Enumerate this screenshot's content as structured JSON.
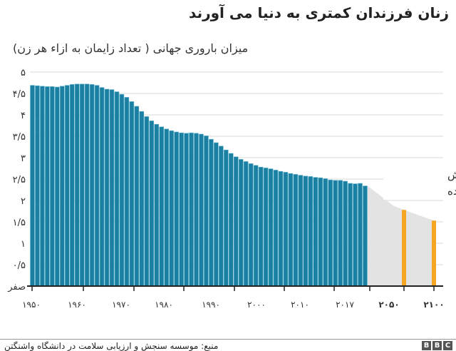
{
  "title": "زنان فرزندان کمتری به دنیا می آورند",
  "subtitle": "میزان باروری جهانی ( تعداد زایمان به ازاء هر زن)",
  "source": "منبع: موسسه سنجش و ارزیابی سلامت در دانشگاه واشنگتن",
  "logo": [
    "B",
    "B",
    "C"
  ],
  "colors": {
    "historical": "#1a7fa0",
    "projected": "#f5a623",
    "projection_area": "#e3e3e3",
    "grid": "#d8d8d8"
  },
  "chart_data": {
    "type": "bar",
    "title": "زنان فرزندان کمتری به دنیا می آورند",
    "ylabel": "میزان باروری جهانی ( تعداد زایمان به ازاء هر زن)",
    "ylim": [
      0,
      5
    ],
    "grid": true,
    "y_ticks": [
      "صفر",
      "۰/۵",
      "۱",
      "۱/۵",
      "۲",
      "۲/۵",
      "۳",
      "۳/۵",
      "۴",
      "۴/۵",
      "۵"
    ],
    "x_ticks": [
      "۱۹۵۰",
      "۱۹۶۰",
      "۱۹۷۰",
      "۱۹۸۰",
      "۱۹۹۰",
      "۲۰۰۰",
      "۲۰۱۰",
      "۲۰۱۷",
      "۲۰۵۰",
      "۲۱۰۰"
    ],
    "historical": {
      "start_year": 1950,
      "end_year": 2017,
      "values": [
        4.69,
        4.68,
        4.67,
        4.66,
        4.66,
        4.65,
        4.67,
        4.69,
        4.71,
        4.72,
        4.72,
        4.72,
        4.71,
        4.69,
        4.64,
        4.6,
        4.59,
        4.54,
        4.48,
        4.41,
        4.31,
        4.2,
        4.08,
        3.96,
        3.86,
        3.78,
        3.72,
        3.67,
        3.63,
        3.6,
        3.58,
        3.57,
        3.58,
        3.57,
        3.55,
        3.51,
        3.43,
        3.35,
        3.27,
        3.18,
        3.1,
        3.02,
        2.96,
        2.91,
        2.86,
        2.82,
        2.78,
        2.76,
        2.74,
        2.71,
        2.68,
        2.66,
        2.63,
        2.61,
        2.59,
        2.57,
        2.56,
        2.54,
        2.53,
        2.51,
        2.48,
        2.47,
        2.47,
        2.45,
        2.4,
        2.39,
        2.4,
        2.34
      ]
    },
    "projected": [
      {
        "year": 2050,
        "value": 1.78
      },
      {
        "year": 2100,
        "value": 1.53
      }
    ],
    "annotation": [
      "ارقام پیش",
      "بینی شده"
    ]
  }
}
